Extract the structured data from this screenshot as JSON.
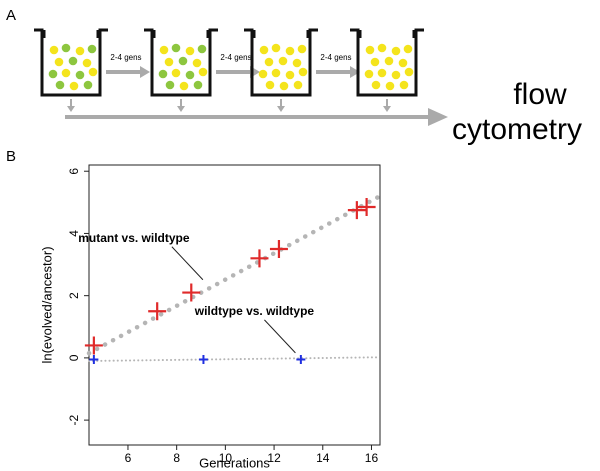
{
  "panel_labels": [
    "A",
    "B"
  ],
  "diagram": {
    "step_labels": [
      "2-4 gens",
      "2-4 gens",
      "2-4 gens"
    ],
    "output_label": [
      "flow",
      "cytometry"
    ]
  },
  "chart_data": {
    "type": "scatter",
    "xlabel": "Generations",
    "ylabel": "ln(evolved/ancestor)",
    "xlim": [
      4.4,
      16.35
    ],
    "ylim": [
      -2.8,
      6.2
    ],
    "xticks": [
      6,
      8,
      10,
      12,
      14,
      16
    ],
    "yticks": [
      -2,
      0,
      2,
      4,
      6
    ],
    "series": [
      {
        "name": "mutant vs. wildtype",
        "color": "#e02a2a",
        "x": [
          4.6,
          7.2,
          8.6,
          11.4,
          12.2,
          15.4,
          15.8
        ],
        "values": [
          0.4,
          1.5,
          2.1,
          3.2,
          3.5,
          4.75,
          4.85
        ]
      },
      {
        "name": "wildtype vs. wildtype",
        "color": "#1f2fe0",
        "x": [
          4.6,
          9.1,
          13.1
        ],
        "values": [
          -0.05,
          -0.05,
          -0.05
        ]
      }
    ],
    "trend_lines": [
      {
        "x": [
          4.4,
          16.35
        ],
        "values": [
          0.15,
          5.2
        ],
        "color": "#b5b5b5"
      },
      {
        "x": [
          4.4,
          16.35
        ],
        "values": [
          -0.1,
          0.02
        ],
        "color": "#b5b5b5"
      }
    ],
    "annotations": [
      {
        "text": "mutant vs. wildtype",
        "x": 9.2,
        "y": 2.35
      },
      {
        "text": "wildtype vs. wildtype",
        "x": 13.0,
        "y": 0.0
      }
    ]
  }
}
